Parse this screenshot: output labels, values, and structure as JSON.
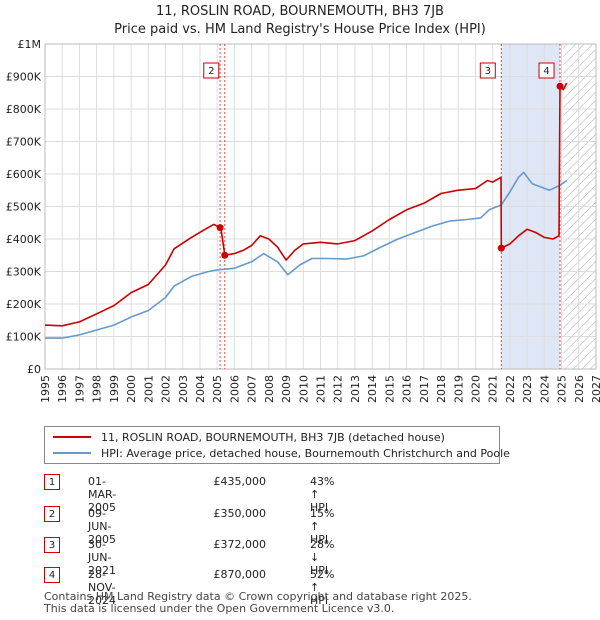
{
  "title_line1": "11, ROSLIN ROAD, BOURNEMOUTH, BH3 7JB",
  "title_line2": "Price paid vs. HM Land Registry's House Price Index (HPI)",
  "colors": {
    "price_line": "#cc0000",
    "hpi_line": "#6699cc",
    "shade": "#dfe6f5",
    "grid": "#dddddd"
  },
  "chart_data": {
    "type": "line",
    "y_ticks": [
      "£0",
      "£100K",
      "£200K",
      "£300K",
      "£400K",
      "£500K",
      "£600K",
      "£700K",
      "£800K",
      "£900K",
      "£1M"
    ],
    "x_ticks": [
      "1995",
      "1996",
      "1997",
      "1998",
      "1999",
      "2000",
      "2001",
      "2002",
      "2003",
      "2004",
      "2005",
      "2006",
      "2007",
      "2008",
      "2009",
      "2010",
      "2011",
      "2012",
      "2013",
      "2014",
      "2015",
      "2016",
      "2017",
      "2018",
      "2019",
      "2020",
      "2021",
      "2022",
      "2023",
      "2024",
      "2025",
      "2026",
      "2027"
    ],
    "xlim": [
      1995,
      2027
    ],
    "ylim": [
      0,
      1000000
    ],
    "shaded_period": [
      2021.5,
      2024.9
    ],
    "forecast_start": 2025.1,
    "series": [
      {
        "name": "11, ROSLIN ROAD, BOURNEMOUTH, BH3 7JB (detached house)",
        "color": "#cc0000",
        "points": [
          [
            1995.0,
            135000
          ],
          [
            1996.0,
            133000
          ],
          [
            1997.0,
            145000
          ],
          [
            1998.0,
            170000
          ],
          [
            1999.0,
            195000
          ],
          [
            2000.0,
            235000
          ],
          [
            2001.0,
            260000
          ],
          [
            2002.0,
            320000
          ],
          [
            2002.5,
            370000
          ],
          [
            2003.5,
            405000
          ],
          [
            2004.3,
            430000
          ],
          [
            2004.8,
            445000
          ],
          [
            2005.17,
            435000
          ],
          [
            2005.2,
            440000
          ],
          [
            2005.44,
            350000
          ],
          [
            2006.0,
            355000
          ],
          [
            2006.5,
            365000
          ],
          [
            2007.0,
            380000
          ],
          [
            2007.5,
            410000
          ],
          [
            2008.0,
            400000
          ],
          [
            2008.5,
            375000
          ],
          [
            2009.0,
            335000
          ],
          [
            2009.5,
            365000
          ],
          [
            2010.0,
            385000
          ],
          [
            2011.0,
            390000
          ],
          [
            2012.0,
            385000
          ],
          [
            2013.0,
            395000
          ],
          [
            2014.0,
            425000
          ],
          [
            2015.0,
            460000
          ],
          [
            2016.0,
            490000
          ],
          [
            2017.0,
            510000
          ],
          [
            2018.0,
            540000
          ],
          [
            2019.0,
            550000
          ],
          [
            2020.0,
            555000
          ],
          [
            2020.7,
            580000
          ],
          [
            2021.0,
            575000
          ],
          [
            2021.48,
            590000
          ],
          [
            2021.5,
            372000
          ],
          [
            2022.0,
            385000
          ],
          [
            2022.5,
            410000
          ],
          [
            2023.0,
            430000
          ],
          [
            2023.5,
            420000
          ],
          [
            2024.0,
            405000
          ],
          [
            2024.5,
            400000
          ],
          [
            2024.85,
            410000
          ],
          [
            2024.91,
            870000
          ],
          [
            2025.1,
            860000
          ],
          [
            2025.3,
            880000
          ]
        ]
      },
      {
        "name": "HPI: Average price, detached house, Bournemouth Christchurch and Poole",
        "color": "#6699cc",
        "points": [
          [
            1995.0,
            95000
          ],
          [
            1996.0,
            95000
          ],
          [
            1997.0,
            105000
          ],
          [
            1998.0,
            120000
          ],
          [
            1999.0,
            135000
          ],
          [
            2000.0,
            160000
          ],
          [
            2001.0,
            180000
          ],
          [
            2002.0,
            220000
          ],
          [
            2002.5,
            255000
          ],
          [
            2003.5,
            285000
          ],
          [
            2004.5,
            300000
          ],
          [
            2005.0,
            305000
          ],
          [
            2006.0,
            310000
          ],
          [
            2007.0,
            330000
          ],
          [
            2007.7,
            355000
          ],
          [
            2008.5,
            330000
          ],
          [
            2009.1,
            290000
          ],
          [
            2009.8,
            320000
          ],
          [
            2010.5,
            340000
          ],
          [
            2011.5,
            340000
          ],
          [
            2012.5,
            338000
          ],
          [
            2013.5,
            348000
          ],
          [
            2014.5,
            375000
          ],
          [
            2015.5,
            400000
          ],
          [
            2016.5,
            420000
          ],
          [
            2017.5,
            440000
          ],
          [
            2018.5,
            455000
          ],
          [
            2019.5,
            460000
          ],
          [
            2020.3,
            465000
          ],
          [
            2020.8,
            490000
          ],
          [
            2021.5,
            505000
          ],
          [
            2022.0,
            545000
          ],
          [
            2022.5,
            590000
          ],
          [
            2022.8,
            605000
          ],
          [
            2023.3,
            570000
          ],
          [
            2023.8,
            560000
          ],
          [
            2024.3,
            550000
          ],
          [
            2024.9,
            565000
          ],
          [
            2025.3,
            580000
          ]
        ]
      }
    ],
    "markers": [
      {
        "label": "1",
        "x": 2005.17,
        "y": 435000,
        "vline": true,
        "box": false
      },
      {
        "label": "2",
        "x": 2005.44,
        "y": 350000,
        "vline": true,
        "box": true
      },
      {
        "label": "3",
        "x": 2021.5,
        "y": 372000,
        "vline": true,
        "box": true
      },
      {
        "label": "4",
        "x": 2024.91,
        "y": 870000,
        "vline": true,
        "box": true
      }
    ]
  },
  "legend": {
    "price_label": "11, ROSLIN ROAD, BOURNEMOUTH, BH3 7JB (detached house)",
    "hpi_label": "HPI: Average price, detached house, Bournemouth Christchurch and Poole"
  },
  "transactions": [
    {
      "num": "1",
      "date": "01-MAR-2005",
      "price": "£435,000",
      "hpi": "43% ↑ HPI"
    },
    {
      "num": "2",
      "date": "09-JUN-2005",
      "price": "£350,000",
      "hpi": "15% ↑ HPI"
    },
    {
      "num": "3",
      "date": "30-JUN-2021",
      "price": "£372,000",
      "hpi": "28% ↓ HPI"
    },
    {
      "num": "4",
      "date": "28-NOV-2024",
      "price": "£870,000",
      "hpi": "52% ↑ HPI"
    }
  ],
  "footer_line1": "Contains HM Land Registry data © Crown copyright and database right 2025.",
  "footer_line2": "This data is licensed under the Open Government Licence v3.0."
}
